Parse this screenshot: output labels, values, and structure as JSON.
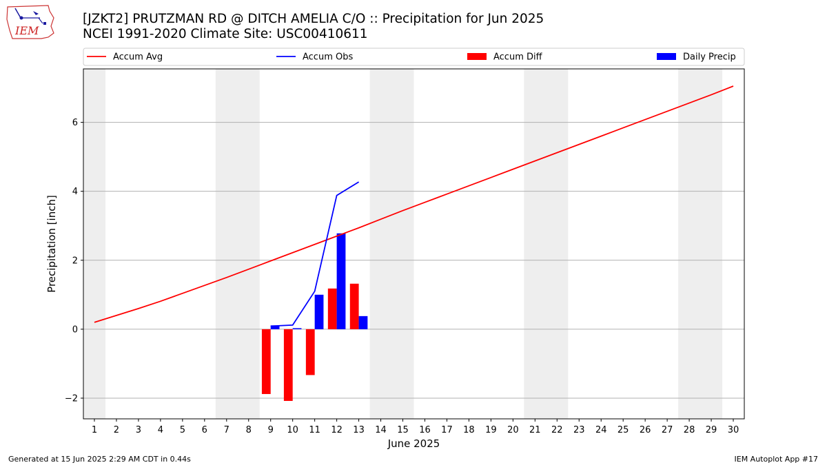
{
  "header": {
    "title_line1": "[JZKT2] PRUTZMAN RD @ DITCH AMELIA C/O :: Precipitation for Jun 2025",
    "title_line2": "NCEI 1991-2020 Climate Site: USC00410611",
    "logo_text": "IEM"
  },
  "footer": {
    "generated": "Generated at 15 Jun 2025 2:29 AM CDT in 0.44s",
    "app": "IEM Autoplot App #17"
  },
  "colors": {
    "avg": "#ff0000",
    "obs": "#0000ff",
    "diff": "#ff0000",
    "daily": "#0000ff",
    "weekend_band": "#eeeeee",
    "grid": "#b0b0b0"
  },
  "chart_data": {
    "type": "bar",
    "xlabel": "June 2025",
    "ylabel": "Precipitation [inch]",
    "xlim": [
      0.5,
      30.5
    ],
    "ylim": [
      -2.6,
      7.55
    ],
    "yticks": [
      -2,
      0,
      2,
      4,
      6
    ],
    "ytick_labels": [
      "−2",
      "0",
      "2",
      "4",
      "6"
    ],
    "days": [
      1,
      2,
      3,
      4,
      5,
      6,
      7,
      8,
      9,
      10,
      11,
      12,
      13,
      14,
      15,
      16,
      17,
      18,
      19,
      20,
      21,
      22,
      23,
      24,
      25,
      26,
      27,
      28,
      29,
      30
    ],
    "grid": "horizontal",
    "legend_placement": "top",
    "weekend_bands": [
      [
        1,
        1
      ],
      [
        7,
        8
      ],
      [
        14,
        15
      ],
      [
        21,
        22
      ],
      [
        28,
        29
      ]
    ],
    "series": [
      {
        "name": "Accum Avg",
        "kind": "line",
        "x": [
          1,
          2,
          3,
          4,
          5,
          6,
          7,
          8,
          9,
          10,
          11,
          12,
          13,
          14,
          15,
          16,
          17,
          18,
          19,
          20,
          21,
          22,
          23,
          24,
          25,
          26,
          27,
          28,
          29,
          30
        ],
        "values": [
          0.2,
          0.4,
          0.6,
          0.81,
          1.04,
          1.27,
          1.5,
          1.74,
          1.98,
          2.22,
          2.46,
          2.7,
          2.94,
          3.19,
          3.44,
          3.68,
          3.92,
          4.16,
          4.4,
          4.64,
          4.88,
          5.12,
          5.36,
          5.6,
          5.84,
          6.08,
          6.32,
          6.56,
          6.8,
          7.05
        ]
      },
      {
        "name": "Accum Obs",
        "kind": "line",
        "x": [
          9,
          10,
          11,
          12,
          13
        ],
        "values": [
          0.09,
          0.12,
          1.1,
          3.88,
          4.27
        ]
      },
      {
        "name": "Accum Diff",
        "kind": "bar",
        "x": [
          9,
          10,
          11,
          12,
          13
        ],
        "values": [
          -1.88,
          -2.08,
          -1.33,
          1.18,
          1.32
        ]
      },
      {
        "name": "Daily Precip",
        "kind": "bar",
        "x": [
          9,
          10,
          11,
          12,
          13
        ],
        "values": [
          0.11,
          0.03,
          1.0,
          2.78,
          0.38
        ]
      }
    ]
  }
}
